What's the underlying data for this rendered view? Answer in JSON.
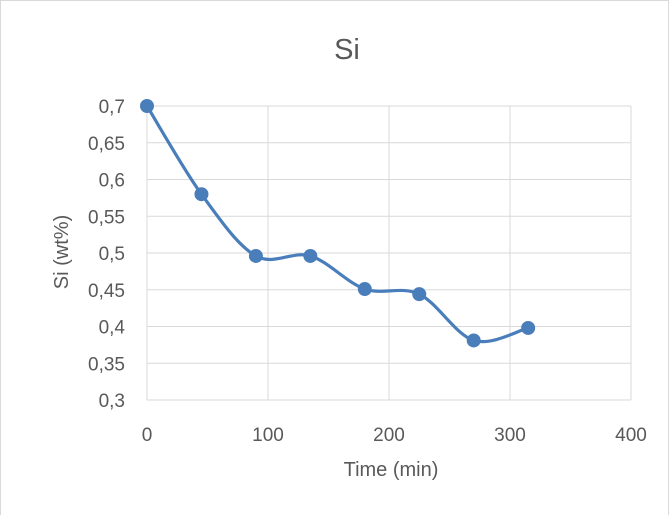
{
  "chart_data": {
    "type": "line",
    "title": "Si",
    "xlabel": "Time (min)",
    "ylabel": "Si (wt%)",
    "xlim": [
      0,
      400
    ],
    "ylim": [
      0.3,
      0.7
    ],
    "x_ticks": [
      0,
      100,
      200,
      300,
      400
    ],
    "y_ticks": [
      0.3,
      0.35,
      0.4,
      0.45,
      0.5,
      0.55,
      0.6,
      0.65,
      0.7
    ],
    "x_tick_labels": [
      "0",
      "100",
      "200",
      "300",
      "400"
    ],
    "y_tick_labels": [
      "0,3",
      "0,35",
      "0,4",
      "0,45",
      "0,5",
      "0,55",
      "0,6",
      "0,65",
      "0,7"
    ],
    "grid": true,
    "legend": "none",
    "smooth": true,
    "series": [
      {
        "color": "#4a7ebb",
        "x": [
          0,
          45,
          90,
          135,
          180,
          225,
          270,
          315
        ],
        "y": [
          0.7,
          0.58,
          0.496,
          0.496,
          0.451,
          0.444,
          0.381,
          0.398
        ]
      }
    ]
  }
}
